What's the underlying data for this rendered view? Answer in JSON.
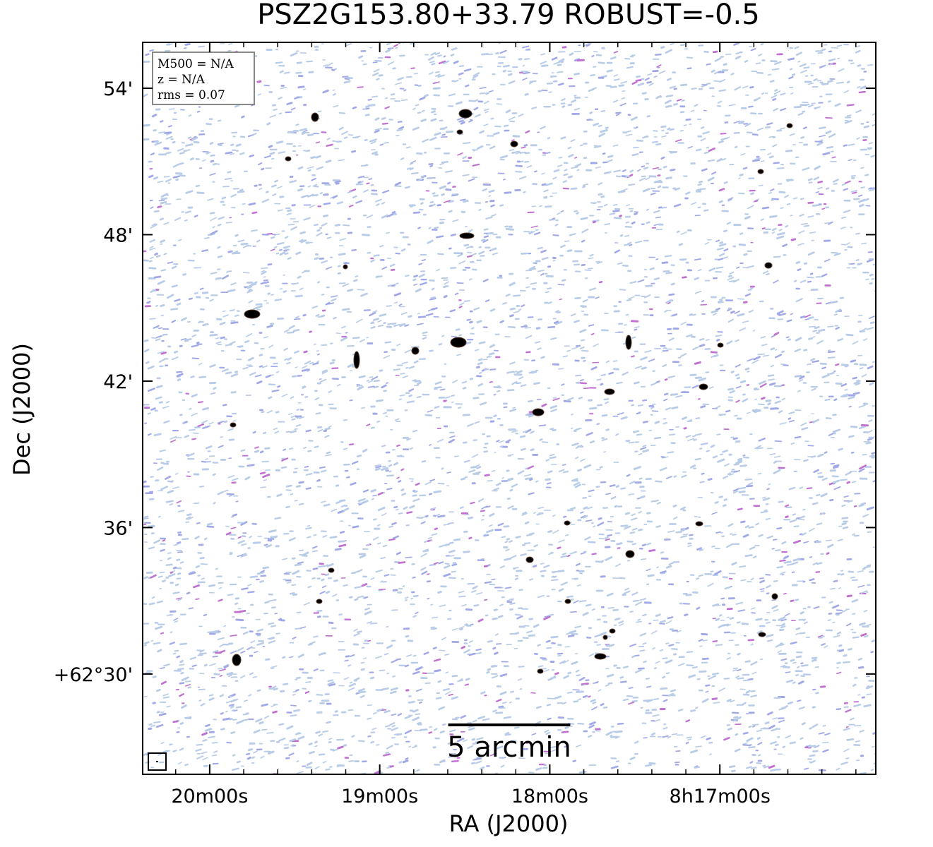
{
  "chart_data": {
    "type": "image",
    "title": "PSZ2G153.80+33.79 ROBUST=-0.5",
    "xlabel": "RA (J2000)",
    "ylabel": "Dec (J2000)",
    "xlim": [
      20.394,
      16.083
    ],
    "ylim": [
      25.89,
      55.88
    ],
    "xticks": [
      {
        "value": 20,
        "label": "20m00s"
      },
      {
        "value": 19,
        "label": "19m00s"
      },
      {
        "value": 18,
        "label": "18m00s"
      },
      {
        "value": 17,
        "label": "8h17m00s"
      }
    ],
    "yticks": [
      {
        "value": 30,
        "label": "+62°30'"
      },
      {
        "value": 36,
        "label": "36'"
      },
      {
        "value": 42,
        "label": "42'"
      },
      {
        "value": 48,
        "label": "48'"
      },
      {
        "value": 54,
        "label": "54'"
      }
    ],
    "info": [
      "M500 = N/A",
      "z = N/A",
      "rms = 0.07"
    ],
    "scalebar": {
      "label": "5 arcmin",
      "length": 5
    }
  }
}
